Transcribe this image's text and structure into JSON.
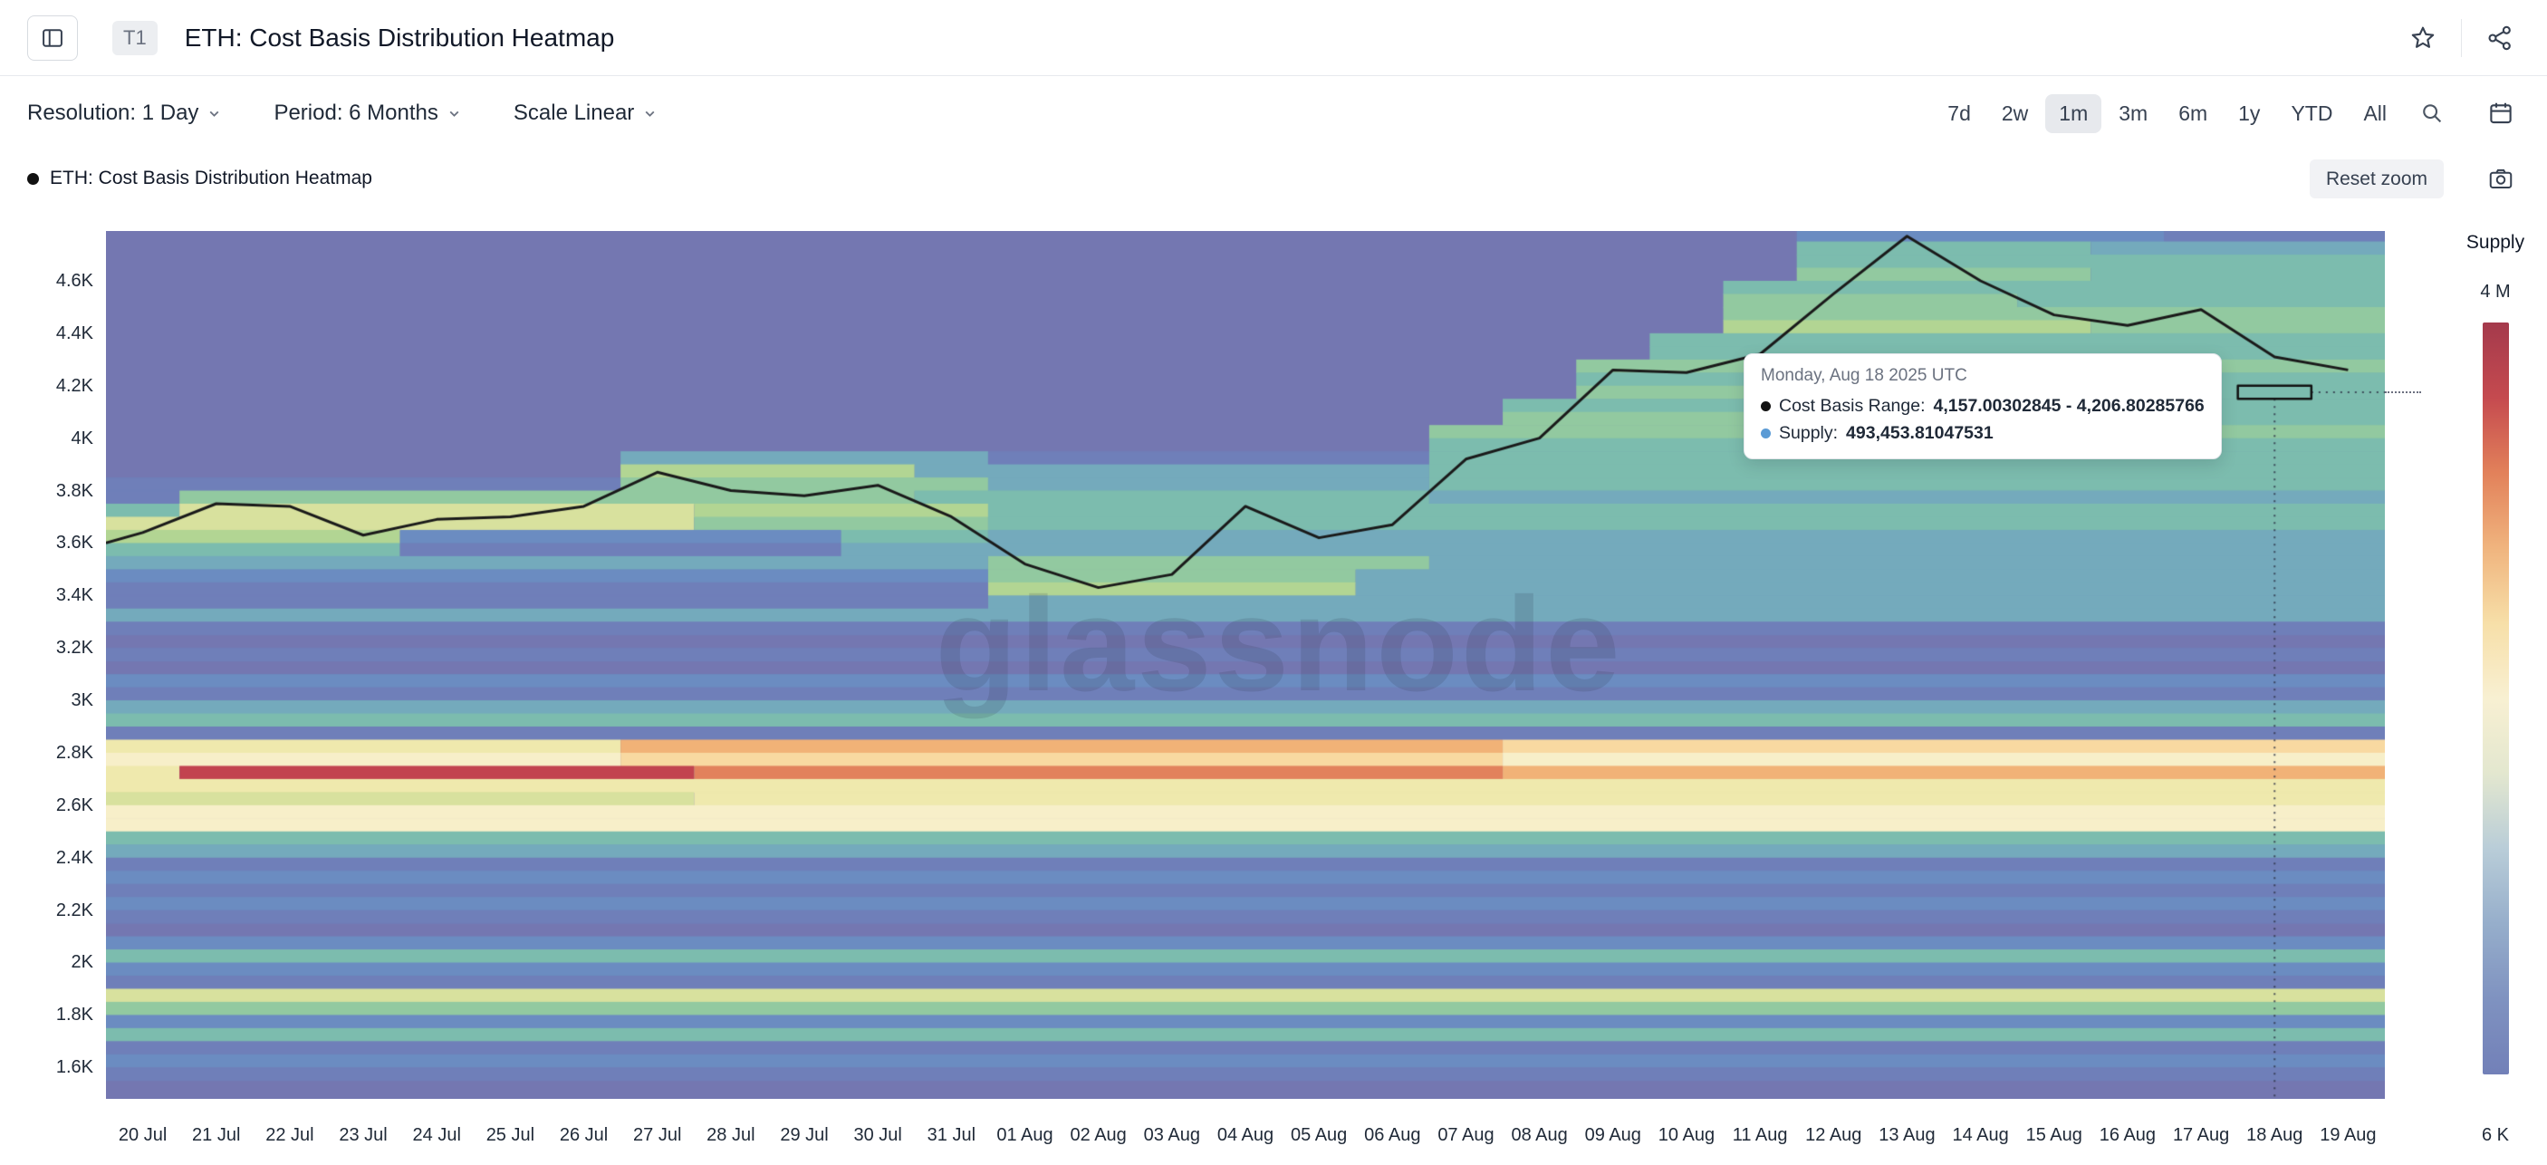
{
  "header": {
    "badge": "T1",
    "title": "ETH: Cost Basis Distribution Heatmap"
  },
  "controls": {
    "resolution_label": "Resolution: 1 Day",
    "period_label": "Period: 6 Months",
    "scale_label": "Scale Linear",
    "range_buttons": [
      "7d",
      "2w",
      "1m",
      "3m",
      "6m",
      "1y",
      "YTD",
      "All"
    ],
    "active_range": "1m"
  },
  "legend": {
    "series_label": "ETH: Cost Basis Distribution Heatmap",
    "reset_zoom_label": "Reset zoom"
  },
  "tooltip": {
    "date": "Monday, Aug 18 2025 UTC",
    "cost_basis_label": "Cost Basis Range:",
    "cost_basis_value": "4,157.00302845 - 4,206.80285766",
    "supply_label": "Supply:",
    "supply_value": "493,453.81047531",
    "supply_dot_color": "#5b9bd5"
  },
  "colorbar": {
    "title": "Supply",
    "top_label": "4 M",
    "bottom_label": "6 K",
    "gradient": [
      "#a43a4c",
      "#c54a4f",
      "#e2815a",
      "#f0b47e",
      "#f7dfa8",
      "#f8f0d2",
      "#e3e7cf",
      "#b9cdd8",
      "#96aecb",
      "#7f92c0",
      "#7280b8"
    ]
  },
  "watermark": "glassnode",
  "chart_data": {
    "type": "heatmap",
    "title": "ETH: Cost Basis Distribution Heatmap",
    "x_labels": [
      "20 Jul",
      "21 Jul",
      "22 Jul",
      "23 Jul",
      "24 Jul",
      "25 Jul",
      "26 Jul",
      "27 Jul",
      "28 Jul",
      "29 Jul",
      "30 Jul",
      "31 Jul",
      "01 Aug",
      "02 Aug",
      "03 Aug",
      "04 Aug",
      "05 Aug",
      "06 Aug",
      "07 Aug",
      "08 Aug",
      "09 Aug",
      "10 Aug",
      "11 Aug",
      "12 Aug",
      "13 Aug",
      "14 Aug",
      "15 Aug",
      "16 Aug",
      "17 Aug",
      "18 Aug",
      "19 Aug"
    ],
    "y_ticks": [
      {
        "label": "4.6K",
        "value": 4600
      },
      {
        "label": "4.4K",
        "value": 4400
      },
      {
        "label": "4.2K",
        "value": 4200
      },
      {
        "label": "4K",
        "value": 4000
      },
      {
        "label": "3.8K",
        "value": 3800
      },
      {
        "label": "3.6K",
        "value": 3600
      },
      {
        "label": "3.4K",
        "value": 3400
      },
      {
        "label": "3.2K",
        "value": 3200
      },
      {
        "label": "3K",
        "value": 3000
      },
      {
        "label": "2.8K",
        "value": 2800
      },
      {
        "label": "2.6K",
        "value": 2600
      },
      {
        "label": "2.4K",
        "value": 2400
      },
      {
        "label": "2.2K",
        "value": 2200
      },
      {
        "label": "2K",
        "value": 2000
      },
      {
        "label": "1.8K",
        "value": 1800
      },
      {
        "label": "1.6K",
        "value": 1600
      }
    ],
    "y_range": [
      1480,
      4790
    ],
    "band_size": 50,
    "palette": {
      "0": "#7477b1",
      "1": "#6f7fb9",
      "2": "#6b8cc1",
      "3": "#74aabc",
      "4": "#7cbcae",
      "5": "#92c9a0",
      "6": "#b2d593",
      "7": "#d8e19e",
      "8": "#efe9ad",
      "9": "#f7efc9",
      "a": "#f8d9a1",
      "b": "#f1b277",
      "c": "#e2815c",
      "d": "#c2434f"
    },
    "line_color": "#1a1a1a",
    "price_line_start": 3600,
    "price_line": [
      3640,
      3750,
      3740,
      3630,
      3690,
      3700,
      3740,
      3870,
      3800,
      3780,
      3820,
      3700,
      3520,
      3430,
      3480,
      3740,
      3620,
      3670,
      3920,
      4000,
      4260,
      4250,
      4320,
      4550,
      4770,
      4600,
      4470,
      4430,
      4490,
      4310,
      4260
    ],
    "highlight_cell": {
      "day_index": 29,
      "date": "18 Aug",
      "price_low": 4150,
      "price_high": 4200
    },
    "heatmap_rows": [
      {
        "p": 4750,
        "runs": [
          [
            23,
            28,
            "2"
          ],
          [
            28,
            31,
            "1"
          ]
        ]
      },
      {
        "p": 4700,
        "runs": [
          [
            23,
            27,
            "4"
          ],
          [
            27,
            31,
            "3"
          ]
        ]
      },
      {
        "p": 4650,
        "runs": [
          [
            23,
            31,
            "4"
          ]
        ]
      },
      {
        "p": 4600,
        "runs": [
          [
            23,
            27,
            "5"
          ],
          [
            27,
            31,
            "4"
          ]
        ]
      },
      {
        "p": 4550,
        "runs": [
          [
            22,
            31,
            "4"
          ]
        ]
      },
      {
        "p": 4500,
        "runs": [
          [
            22,
            26,
            "5"
          ],
          [
            26,
            31,
            "4"
          ]
        ]
      },
      {
        "p": 4450,
        "runs": [
          [
            22,
            31,
            "5"
          ]
        ]
      },
      {
        "p": 4400,
        "runs": [
          [
            22,
            27,
            "6"
          ],
          [
            27,
            31,
            "5"
          ]
        ]
      },
      {
        "p": 4350,
        "runs": [
          [
            21,
            31,
            "4"
          ]
        ]
      },
      {
        "p": 4300,
        "runs": [
          [
            21,
            31,
            "4"
          ]
        ]
      },
      {
        "p": 4250,
        "runs": [
          [
            20,
            31,
            "5"
          ]
        ]
      },
      {
        "p": 4200,
        "runs": [
          [
            20,
            31,
            "4"
          ]
        ]
      },
      {
        "p": 4150,
        "runs": [
          [
            20,
            26,
            "5"
          ],
          [
            26,
            31,
            "4"
          ]
        ]
      },
      {
        "p": 4100,
        "runs": [
          [
            19,
            31,
            "4"
          ]
        ]
      },
      {
        "p": 4050,
        "runs": [
          [
            19,
            24,
            "5"
          ],
          [
            24,
            31,
            "4"
          ]
        ]
      },
      {
        "p": 4000,
        "runs": [
          [
            18,
            31,
            "5"
          ]
        ]
      },
      {
        "p": 3950,
        "runs": [
          [
            18,
            31,
            "4"
          ]
        ]
      },
      {
        "p": 3900,
        "runs": [
          [
            7,
            12,
            "3"
          ],
          [
            12,
            18,
            "1"
          ],
          [
            18,
            31,
            "4"
          ]
        ]
      },
      {
        "p": 3850,
        "runs": [
          [
            7,
            11,
            "6"
          ],
          [
            11,
            18,
            "3"
          ],
          [
            18,
            31,
            "4"
          ]
        ]
      },
      {
        "p": 3800,
        "runs": [
          [
            0,
            7,
            "1"
          ],
          [
            7,
            12,
            "5"
          ],
          [
            12,
            18,
            "3"
          ],
          [
            18,
            31,
            "4"
          ]
        ]
      },
      {
        "p": 3750,
        "runs": [
          [
            0,
            1,
            "1"
          ],
          [
            1,
            11,
            "5"
          ],
          [
            11,
            18,
            "4"
          ],
          [
            18,
            31,
            "3"
          ]
        ]
      },
      {
        "p": 3700,
        "runs": [
          [
            0,
            1,
            "4"
          ],
          [
            1,
            8,
            "7"
          ],
          [
            8,
            12,
            "6"
          ],
          [
            12,
            31,
            "4"
          ]
        ]
      },
      {
        "p": 3650,
        "runs": [
          [
            0,
            8,
            "7"
          ],
          [
            8,
            12,
            "5"
          ],
          [
            12,
            31,
            "4"
          ]
        ]
      },
      {
        "p": 3600,
        "runs": [
          [
            0,
            4,
            "6"
          ],
          [
            4,
            10,
            "2"
          ],
          [
            10,
            12,
            "4"
          ],
          [
            12,
            31,
            "3"
          ]
        ]
      },
      {
        "p": 3550,
        "runs": [
          [
            0,
            4,
            "4"
          ],
          [
            4,
            10,
            "1"
          ],
          [
            10,
            31,
            "3"
          ]
        ]
      },
      {
        "p": 3500,
        "runs": [
          [
            0,
            12,
            "3"
          ],
          [
            12,
            18,
            "5"
          ],
          [
            18,
            31,
            "3"
          ]
        ]
      },
      {
        "p": 3450,
        "runs": [
          [
            0,
            12,
            "2"
          ],
          [
            12,
            17,
            "5"
          ],
          [
            17,
            31,
            "3"
          ]
        ]
      },
      {
        "p": 3400,
        "runs": [
          [
            0,
            12,
            "1"
          ],
          [
            12,
            17,
            "6"
          ],
          [
            17,
            31,
            "3"
          ]
        ]
      },
      {
        "p": 3350,
        "runs": [
          [
            0,
            12,
            "1"
          ],
          [
            12,
            31,
            "3"
          ]
        ]
      },
      {
        "p": 3300,
        "runs": [
          [
            0,
            31,
            "3"
          ]
        ]
      },
      {
        "p": 3250,
        "runs": [
          [
            0,
            31,
            "1"
          ]
        ]
      },
      {
        "p": 3200,
        "runs": []
      },
      {
        "p": 3150,
        "runs": [
          [
            0,
            31,
            "1"
          ]
        ]
      },
      {
        "p": 3100,
        "runs": []
      },
      {
        "p": 3050,
        "runs": [
          [
            0,
            31,
            "2"
          ]
        ]
      },
      {
        "p": 3000,
        "runs": [
          [
            0,
            31,
            "1"
          ]
        ]
      },
      {
        "p": 2950,
        "runs": [
          [
            0,
            31,
            "3"
          ]
        ]
      },
      {
        "p": 2900,
        "runs": [
          [
            0,
            31,
            "4"
          ]
        ]
      },
      {
        "p": 2850,
        "runs": [
          [
            0,
            31,
            "1"
          ]
        ]
      },
      {
        "p": 2800,
        "runs": [
          [
            0,
            7,
            "8"
          ],
          [
            7,
            19,
            "b"
          ],
          [
            19,
            31,
            "a"
          ]
        ]
      },
      {
        "p": 2750,
        "runs": [
          [
            0,
            7,
            "9"
          ],
          [
            7,
            19,
            "a"
          ],
          [
            19,
            31,
            "9"
          ]
        ]
      },
      {
        "p": 2700,
        "runs": [
          [
            0,
            1,
            "8"
          ],
          [
            1,
            8,
            "d"
          ],
          [
            8,
            19,
            "c"
          ],
          [
            19,
            31,
            "b"
          ]
        ]
      },
      {
        "p": 2650,
        "runs": [
          [
            0,
            31,
            "8"
          ]
        ]
      },
      {
        "p": 2600,
        "runs": [
          [
            0,
            8,
            "7"
          ],
          [
            8,
            31,
            "8"
          ]
        ]
      },
      {
        "p": 2550,
        "runs": [
          [
            0,
            31,
            "9"
          ]
        ]
      },
      {
        "p": 2500,
        "runs": [
          [
            0,
            31,
            "9"
          ]
        ]
      },
      {
        "p": 2450,
        "runs": [
          [
            0,
            31,
            "4"
          ]
        ]
      },
      {
        "p": 2400,
        "runs": [
          [
            0,
            31,
            "3"
          ]
        ]
      },
      {
        "p": 2350,
        "runs": [
          [
            0,
            31,
            "1"
          ]
        ]
      },
      {
        "p": 2300,
        "runs": [
          [
            0,
            31,
            "2"
          ]
        ]
      },
      {
        "p": 2250,
        "runs": [
          [
            0,
            31,
            "1"
          ]
        ]
      },
      {
        "p": 2200,
        "runs": [
          [
            0,
            31,
            "2"
          ]
        ]
      },
      {
        "p": 2150,
        "runs": [
          [
            0,
            31,
            "1"
          ]
        ]
      },
      {
        "p": 2100,
        "runs": []
      },
      {
        "p": 2050,
        "runs": [
          [
            0,
            31,
            "2"
          ]
        ]
      },
      {
        "p": 2000,
        "runs": [
          [
            0,
            31,
            "4"
          ]
        ]
      },
      {
        "p": 1950,
        "runs": [
          [
            0,
            31,
            "2"
          ]
        ]
      },
      {
        "p": 1900,
        "runs": [
          [
            0,
            31,
            "1"
          ]
        ]
      },
      {
        "p": 1850,
        "runs": [
          [
            0,
            31,
            "7"
          ]
        ]
      },
      {
        "p": 1800,
        "runs": [
          [
            0,
            31,
            "5"
          ]
        ]
      },
      {
        "p": 1750,
        "runs": [
          [
            0,
            31,
            "2"
          ]
        ]
      },
      {
        "p": 1700,
        "runs": [
          [
            0,
            31,
            "4"
          ]
        ]
      },
      {
        "p": 1650,
        "runs": [
          [
            0,
            31,
            "1"
          ]
        ]
      },
      {
        "p": 1600,
        "runs": [
          [
            0,
            31,
            "2"
          ]
        ]
      },
      {
        "p": 1550,
        "runs": [
          [
            0,
            31,
            "1"
          ]
        ]
      },
      {
        "p": 1500,
        "runs": []
      }
    ]
  }
}
